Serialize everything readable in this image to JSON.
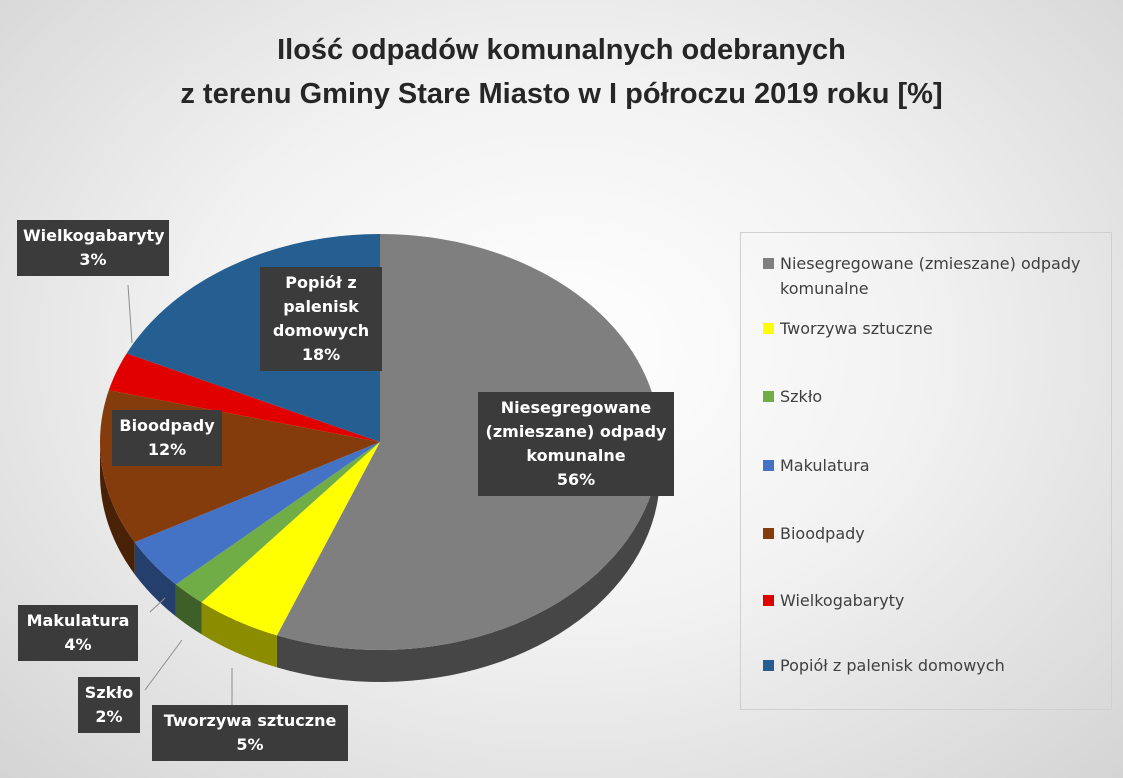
{
  "chart_data": {
    "type": "pie",
    "title": "Ilość odpadów komunalnych odebranych\nz terenu Gminy Stare Miasto w I półroczu 2019 roku [%]",
    "categories": [
      "Niesegregowane (zmieszane) odpady komunalne",
      "Tworzywa sztuczne",
      "Szkło",
      "Makulatura",
      "Bioodpady",
      "Wielkogabaryty",
      "Popiół z palenisk domowych"
    ],
    "values": [
      56,
      5,
      2,
      4,
      12,
      3,
      18
    ],
    "value_labels": [
      "56%",
      "5%",
      "2%",
      "4%",
      "12%",
      "3%",
      "18%"
    ],
    "colors": [
      "#7f7f7f",
      "#ffff00",
      "#70ad47",
      "#4472c4",
      "#843c0c",
      "#e00000",
      "#255e91"
    ],
    "legend": "right"
  }
}
